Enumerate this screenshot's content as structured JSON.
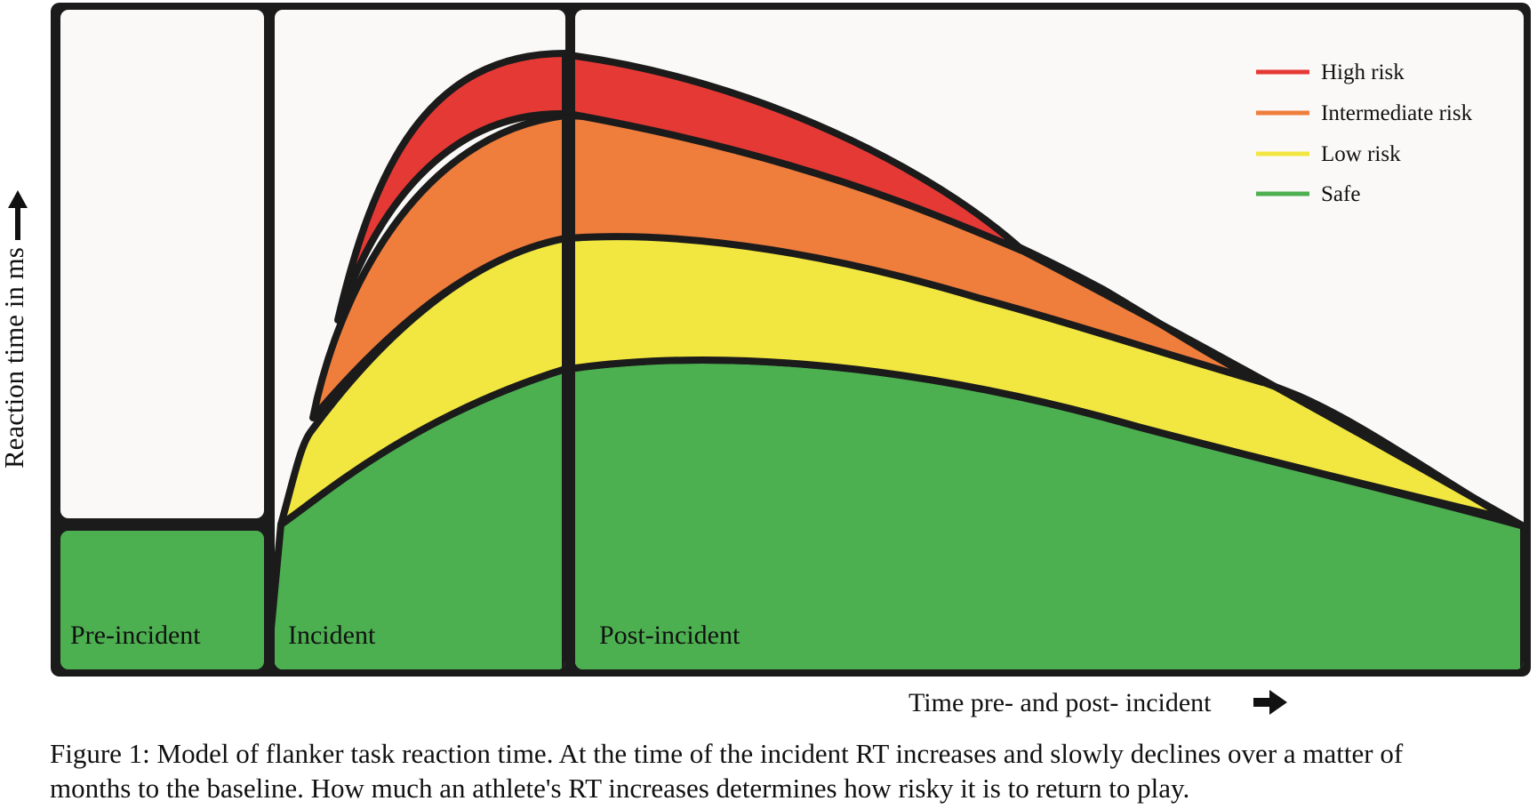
{
  "figure": {
    "y_axis_label": "Reaction time in ms",
    "x_axis_label": "Time pre- and post- incident",
    "phases": [
      "Pre-incident",
      "Incident",
      "Post-incident"
    ],
    "legend": [
      {
        "label": "High risk",
        "color": "#e53935"
      },
      {
        "label": "Intermediate risk",
        "color": "#ef7d3c"
      },
      {
        "label": "Low risk",
        "color": "#f2e640"
      },
      {
        "label": "Safe",
        "color": "#4caf50"
      }
    ],
    "colors": {
      "outline": "#1b1b1b",
      "background": "#fbf9f7",
      "high": "#e53935",
      "intermediate": "#ef7d3c",
      "low": "#f2e640",
      "safe": "#4caf50"
    }
  },
  "caption": {
    "line1": "Figure 1: Model of flanker task reaction time. At the time of the incident RT increases and slowly declines over a matter of",
    "line2": "months to the baseline. How much an athlete's RT increases determines how risky it is to return to play."
  }
}
